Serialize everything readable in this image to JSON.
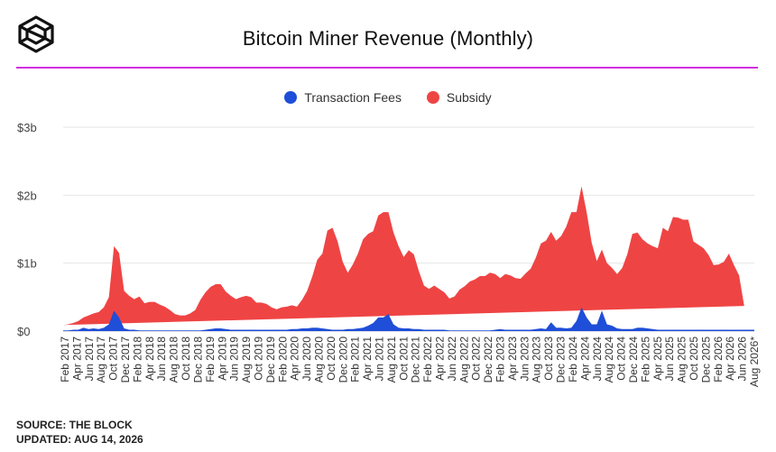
{
  "header": {
    "title": "Bitcoin Miner Revenue (Monthly)"
  },
  "footer": {
    "source": "SOURCE: THE BLOCK",
    "updated": "UPDATED: AUG 14, 2026"
  },
  "colors": {
    "accent_rule": "#d12fe0",
    "transaction_fees": "#1f4ed8",
    "subsidy": "#ef4444",
    "grid": "#e6e6e6"
  },
  "chart_data": {
    "type": "area",
    "stacked": true,
    "title": "Bitcoin Miner Revenue (Monthly)",
    "legend": "top-center",
    "grid": true,
    "ylim": [
      0,
      3
    ],
    "y_ticks": [
      {
        "value": 0,
        "label": "$0"
      },
      {
        "value": 1,
        "label": "$1b"
      },
      {
        "value": 2,
        "label": "$2b"
      },
      {
        "value": 3,
        "label": "$3b"
      }
    ],
    "x_tick_labels": [
      "Feb 2017",
      "Apr 2017",
      "Jun 2017",
      "Aug 2017",
      "Oct 2017",
      "Dec 2017",
      "Feb 2018",
      "Apr 2018",
      "Jun 2018",
      "Aug 2018",
      "Oct 2018",
      "Dec 2018",
      "Feb 2019",
      "Apr 2019",
      "Jun 2019",
      "Aug 2019",
      "Oct 2019",
      "Dec 2019",
      "Feb 2020",
      "Apr 2020",
      "Jun 2020",
      "Aug 2020",
      "Oct 2020",
      "Dec 2020",
      "Feb 2021",
      "Apr 2021",
      "Jun 2021",
      "Aug 2021",
      "Oct 2021",
      "Dec 2021",
      "Feb 2022",
      "Apr 2022",
      "Jun 2022",
      "Aug 2022",
      "Oct 2022",
      "Dec 2022",
      "Feb 2023",
      "Apr 2023",
      "Jun 2023",
      "Aug 2023",
      "Oct 2023",
      "Dec 2023",
      "Feb 2024",
      "Apr 2024",
      "Jun 2024",
      "Aug 2024",
      "Oct 2024",
      "Dec 2024",
      "Feb 2025",
      "Apr 2025",
      "Jun 2025",
      "Aug 2025",
      "Oct 2025",
      "Dec 2025",
      "Feb 2026",
      "Apr 2026",
      "Jun 2026",
      "Aug 2026*"
    ],
    "series": [
      {
        "name": "Transaction Fees",
        "values": [
          0.01,
          0.01,
          0.02,
          0.02,
          0.05,
          0.03,
          0.04,
          0.03,
          0.05,
          0.1,
          0.3,
          0.2,
          0.04,
          0.02,
          0.02,
          0.01,
          0.01,
          0.01,
          0.01,
          0.01,
          0.01,
          0.01,
          0.01,
          0.01,
          0.01,
          0.01,
          0.01,
          0.01,
          0.02,
          0.03,
          0.04,
          0.04,
          0.03,
          0.02,
          0.02,
          0.02,
          0.02,
          0.02,
          0.02,
          0.02,
          0.02,
          0.02,
          0.02,
          0.02,
          0.02,
          0.03,
          0.03,
          0.04,
          0.04,
          0.05,
          0.05,
          0.04,
          0.03,
          0.02,
          0.02,
          0.02,
          0.03,
          0.03,
          0.04,
          0.05,
          0.08,
          0.12,
          0.2,
          0.2,
          0.25,
          0.1,
          0.05,
          0.04,
          0.04,
          0.03,
          0.03,
          0.02,
          0.02,
          0.02,
          0.02,
          0.02,
          0.01,
          0.01,
          0.01,
          0.01,
          0.01,
          0.01,
          0.01,
          0.01,
          0.01,
          0.02,
          0.03,
          0.02,
          0.02,
          0.02,
          0.02,
          0.02,
          0.02,
          0.03,
          0.04,
          0.03,
          0.13,
          0.05,
          0.05,
          0.04,
          0.05,
          0.15,
          0.35,
          0.2,
          0.1,
          0.1,
          0.3,
          0.1,
          0.08,
          0.04,
          0.03,
          0.03,
          0.03,
          0.05,
          0.05,
          0.04,
          0.03,
          0.02,
          0.02,
          0.02,
          0.02,
          0.02,
          0.02,
          0.02,
          0.02,
          0.02,
          0.02,
          0.02,
          0.02,
          0.02,
          0.02,
          0.02,
          0.02,
          0.02,
          0.02,
          0.02,
          0.02
        ]
      },
      {
        "name": "Subsidy",
        "values": [
          0.08,
          0.09,
          0.1,
          0.13,
          0.15,
          0.2,
          0.22,
          0.25,
          0.3,
          0.4,
          0.95,
          0.95,
          0.55,
          0.5,
          0.45,
          0.5,
          0.4,
          0.42,
          0.42,
          0.38,
          0.35,
          0.3,
          0.24,
          0.22,
          0.22,
          0.25,
          0.3,
          0.45,
          0.55,
          0.62,
          0.65,
          0.65,
          0.55,
          0.5,
          0.45,
          0.48,
          0.5,
          0.48,
          0.4,
          0.4,
          0.38,
          0.33,
          0.3,
          0.33,
          0.34,
          0.35,
          0.33,
          0.42,
          0.55,
          0.75,
          1.0,
          1.1,
          1.45,
          1.5,
          1.3,
          1.0,
          0.83,
          0.95,
          1.1,
          1.3,
          1.35,
          1.35,
          1.5,
          1.55,
          1.5,
          1.35,
          1.2,
          1.05,
          1.15,
          1.1,
          0.85,
          0.65,
          0.6,
          0.65,
          0.6,
          0.55,
          0.47,
          0.5,
          0.6,
          0.65,
          0.72,
          0.75,
          0.8,
          0.8,
          0.85,
          0.82,
          0.75,
          0.82,
          0.8,
          0.76,
          0.75,
          0.83,
          0.9,
          1.05,
          1.25,
          1.3,
          1.33,
          1.28,
          1.35,
          1.5,
          1.7,
          1.6,
          1.78,
          1.55,
          1.2,
          0.93,
          0.9,
          0.9,
          0.85,
          0.8,
          0.9,
          1.1,
          1.4,
          1.4,
          1.3,
          1.25,
          1.22,
          1.2,
          1.5,
          1.45,
          1.66,
          1.65,
          1.62,
          1.62,
          1.3,
          1.25,
          1.2,
          1.1,
          0.95,
          0.96,
          1.0,
          1.12,
          0.95,
          0.8,
          0.35
        ]
      }
    ]
  }
}
